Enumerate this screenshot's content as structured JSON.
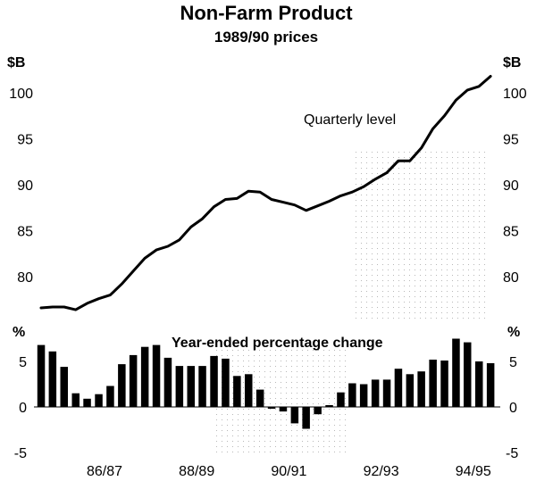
{
  "chart_data": {
    "title": "Non-Farm Product",
    "subtitle": "1989/90 prices",
    "x_tick_labels": [
      "86/87",
      "88/89",
      "90/91",
      "92/93",
      "94/95"
    ],
    "panels": [
      {
        "type": "line",
        "unit_left": "$B",
        "unit_right": "$B",
        "annotation": "Quarterly level",
        "y_ticks": [
          80,
          85,
          90,
          95,
          100
        ],
        "ylim": [
          75,
          102
        ],
        "values": [
          76.6,
          76.7,
          76.7,
          76.4,
          77.1,
          77.6,
          78.0,
          79.2,
          80.6,
          82.0,
          82.9,
          83.3,
          84.0,
          85.4,
          86.3,
          87.6,
          88.4,
          88.5,
          89.3,
          89.2,
          88.4,
          88.1,
          87.8,
          87.2,
          87.7,
          88.2,
          88.8,
          89.2,
          89.8,
          90.6,
          91.3,
          92.6,
          92.6,
          94.0,
          96.1,
          97.5,
          99.2,
          100.3,
          100.7,
          101.8
        ]
      },
      {
        "type": "bar",
        "unit_left": "%",
        "unit_right": "%",
        "annotation": "Year-ended percentage change",
        "y_ticks": [
          -5,
          0,
          5
        ],
        "ylim": [
          -5,
          8
        ],
        "values": [
          6.8,
          6.1,
          4.4,
          1.5,
          0.9,
          1.4,
          2.3,
          4.7,
          5.7,
          6.6,
          6.8,
          5.4,
          4.5,
          4.5,
          4.5,
          5.6,
          5.3,
          3.4,
          3.6,
          1.9,
          -0.2,
          -0.5,
          -1.8,
          -2.4,
          -0.8,
          0.1,
          1.6,
          2.6,
          2.5,
          3.0,
          3.0,
          4.2,
          3.6,
          3.9,
          5.2,
          5.1,
          7.5,
          7.1,
          5.0,
          4.8
        ]
      }
    ]
  }
}
